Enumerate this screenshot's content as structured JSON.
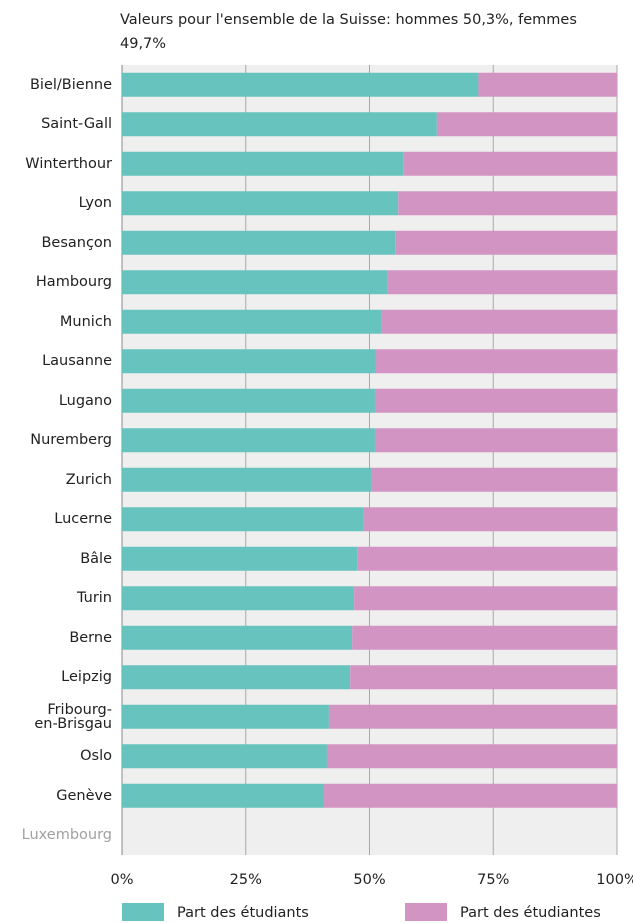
{
  "chart_data": {
    "type": "stacked-bar-horizontal",
    "subtitle": "Valeurs pour l'ensemble de la Suisse: hommes 50,3%, femmes 49,7%",
    "categories": [
      "Biel/Bienne",
      "Saint-Gall",
      "Winterthour",
      "Lyon",
      "Besançon",
      "Hambourg",
      "Munich",
      "Lausanne",
      "Lugano",
      "Nuremberg",
      "Zurich",
      "Lucerne",
      "Bâle",
      "Turin",
      "Berne",
      "Leipzig",
      "Fribourg-\nen-Brisgau",
      "Oslo",
      "Genève",
      "Luxembourg"
    ],
    "series": [
      {
        "name": "Part des étudiants",
        "color": "#66c3bd",
        "values": [
          72,
          63.6,
          56.8,
          55.8,
          55.2,
          53.7,
          52.5,
          51.3,
          51.1,
          51.1,
          50.3,
          48.7,
          47.5,
          46.9,
          46.5,
          46.1,
          41.8,
          41.4,
          40.8,
          null
        ]
      },
      {
        "name": "Part des étudiantes",
        "color": "#d295c3",
        "values": [
          28,
          36.4,
          43.2,
          44.2,
          44.8,
          46.3,
          47.5,
          48.7,
          48.9,
          48.9,
          49.7,
          51.3,
          52.5,
          53.1,
          53.5,
          53.9,
          58.2,
          58.6,
          59.2,
          null
        ]
      }
    ],
    "xlim": [
      0,
      100
    ],
    "xticks": [
      {
        "value": 0,
        "label": "0%"
      },
      {
        "value": 25,
        "label": "25%"
      },
      {
        "value": 50,
        "label": "50%"
      },
      {
        "value": 75,
        "label": "75%"
      },
      {
        "value": 100,
        "label": "100%"
      }
    ],
    "grid": true
  }
}
